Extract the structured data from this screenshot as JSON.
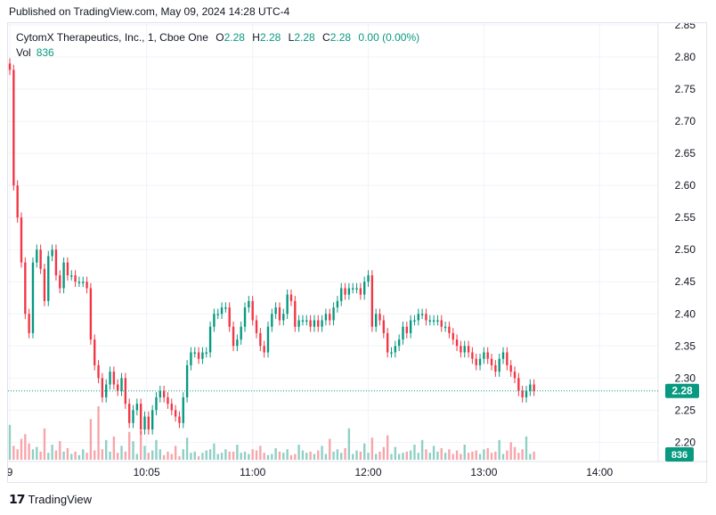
{
  "header": {
    "published": "Published on TradingView.com, May 09, 2024 14:28 UTC-4"
  },
  "legend": {
    "symbol": "CytomX Therapeutics, Inc., 1, Cboe One",
    "open_label": "O",
    "open": "2.28",
    "high_label": "H",
    "high": "2.28",
    "low_label": "L",
    "low": "2.28",
    "close_label": "C",
    "close": "2.28",
    "change": "0.00 (0.00%)",
    "vol_label": "Vol",
    "vol": "836"
  },
  "footer": {
    "brand": "TradingView"
  },
  "colors": {
    "up": "#089981",
    "down": "#f23645",
    "grid": "#f0f3fa",
    "vol_up": "#8fcfc5",
    "vol_down": "#f7a5ab"
  },
  "chart_data": {
    "type": "candlestick",
    "title": "CytomX Therapeutics, Inc., 1, Cboe One",
    "ylim": [
      2.17,
      2.85
    ],
    "y_ticks": [
      "2.85",
      "2.80",
      "2.75",
      "2.70",
      "2.65",
      "2.60",
      "2.55",
      "2.50",
      "2.45",
      "2.40",
      "2.35",
      "2.30",
      "2.25",
      "2.20"
    ],
    "x_ticks": [
      "9",
      "10:05",
      "11:00",
      "12:00",
      "13:00",
      "14:00"
    ],
    "x_tick_minutes": [
      -66,
      5,
      60,
      120,
      180,
      240
    ],
    "x_range_minutes": [
      -66,
      263
    ],
    "last_price": "2.28",
    "last_volume": "836",
    "price_path": [
      [
        -66,
        2.78
      ],
      [
        -64,
        2.6
      ],
      [
        -62,
        2.55
      ],
      [
        -60,
        2.48
      ],
      [
        -58,
        2.4
      ],
      [
        -56,
        2.37
      ],
      [
        -54,
        2.48
      ],
      [
        -52,
        2.5
      ],
      [
        -50,
        2.47
      ],
      [
        -48,
        2.42
      ],
      [
        -46,
        2.49
      ],
      [
        -44,
        2.5
      ],
      [
        -42,
        2.46
      ],
      [
        -40,
        2.44
      ],
      [
        -38,
        2.48
      ],
      [
        -36,
        2.46
      ],
      [
        -34,
        2.46
      ],
      [
        -32,
        2.45
      ],
      [
        -30,
        2.45
      ],
      [
        -28,
        2.45
      ],
      [
        -26,
        2.44
      ],
      [
        -24,
        2.36
      ],
      [
        -22,
        2.32
      ],
      [
        -20,
        2.3
      ],
      [
        -18,
        2.27
      ],
      [
        -16,
        2.29
      ],
      [
        -14,
        2.31
      ],
      [
        -12,
        2.29
      ],
      [
        -10,
        2.28
      ],
      [
        -8,
        2.3
      ],
      [
        -6,
        2.26
      ],
      [
        -4,
        2.23
      ],
      [
        -2,
        2.25
      ],
      [
        0,
        2.26
      ],
      [
        2,
        2.22
      ],
      [
        4,
        2.24
      ],
      [
        6,
        2.22
      ],
      [
        8,
        2.25
      ],
      [
        10,
        2.27
      ],
      [
        12,
        2.28
      ],
      [
        14,
        2.27
      ],
      [
        16,
        2.26
      ],
      [
        18,
        2.25
      ],
      [
        20,
        2.24
      ],
      [
        22,
        2.23
      ],
      [
        24,
        2.27
      ],
      [
        26,
        2.32
      ],
      [
        28,
        2.34
      ],
      [
        30,
        2.34
      ],
      [
        32,
        2.33
      ],
      [
        34,
        2.34
      ],
      [
        36,
        2.34
      ],
      [
        38,
        2.38
      ],
      [
        40,
        2.4
      ],
      [
        42,
        2.4
      ],
      [
        44,
        2.41
      ],
      [
        46,
        2.41
      ],
      [
        48,
        2.38
      ],
      [
        50,
        2.35
      ],
      [
        52,
        2.36
      ],
      [
        54,
        2.38
      ],
      [
        56,
        2.41
      ],
      [
        58,
        2.42
      ],
      [
        60,
        2.39
      ],
      [
        62,
        2.37
      ],
      [
        64,
        2.35
      ],
      [
        66,
        2.34
      ],
      [
        68,
        2.38
      ],
      [
        70,
        2.4
      ],
      [
        72,
        2.41
      ],
      [
        74,
        2.39
      ],
      [
        76,
        2.4
      ],
      [
        78,
        2.43
      ],
      [
        80,
        2.42
      ],
      [
        82,
        2.38
      ],
      [
        84,
        2.39
      ],
      [
        86,
        2.39
      ],
      [
        88,
        2.39
      ],
      [
        90,
        2.38
      ],
      [
        92,
        2.39
      ],
      [
        94,
        2.38
      ],
      [
        96,
        2.39
      ],
      [
        98,
        2.4
      ],
      [
        100,
        2.39
      ],
      [
        102,
        2.41
      ],
      [
        104,
        2.42
      ],
      [
        106,
        2.44
      ],
      [
        108,
        2.43
      ],
      [
        110,
        2.44
      ],
      [
        112,
        2.44
      ],
      [
        114,
        2.44
      ],
      [
        116,
        2.43
      ],
      [
        118,
        2.45
      ],
      [
        120,
        2.46
      ],
      [
        122,
        2.38
      ],
      [
        124,
        2.4
      ],
      [
        126,
        2.39
      ],
      [
        128,
        2.37
      ],
      [
        130,
        2.34
      ],
      [
        132,
        2.34
      ],
      [
        134,
        2.35
      ],
      [
        136,
        2.36
      ],
      [
        138,
        2.38
      ],
      [
        140,
        2.37
      ],
      [
        142,
        2.39
      ],
      [
        144,
        2.39
      ],
      [
        146,
        2.4
      ],
      [
        148,
        2.4
      ],
      [
        150,
        2.39
      ],
      [
        152,
        2.39
      ],
      [
        154,
        2.39
      ],
      [
        156,
        2.39
      ],
      [
        158,
        2.38
      ],
      [
        160,
        2.38
      ],
      [
        162,
        2.37
      ],
      [
        164,
        2.36
      ],
      [
        166,
        2.35
      ],
      [
        168,
        2.34
      ],
      [
        170,
        2.35
      ],
      [
        172,
        2.34
      ],
      [
        174,
        2.33
      ],
      [
        176,
        2.32
      ],
      [
        178,
        2.33
      ],
      [
        180,
        2.34
      ],
      [
        182,
        2.33
      ],
      [
        184,
        2.32
      ],
      [
        186,
        2.31
      ],
      [
        188,
        2.33
      ],
      [
        190,
        2.34
      ],
      [
        192,
        2.32
      ],
      [
        194,
        2.31
      ],
      [
        196,
        2.3
      ],
      [
        198,
        2.28
      ],
      [
        200,
        2.27
      ],
      [
        202,
        2.28
      ],
      [
        204,
        2.29
      ],
      [
        206,
        2.28
      ]
    ],
    "volume": [
      3000,
      1200,
      900,
      1800,
      2200,
      1400,
      900,
      1100,
      700,
      2700,
      600,
      1300,
      800,
      1600,
      700,
      1000,
      500,
      700,
      400,
      900,
      600,
      3500,
      800,
      4600,
      900,
      1700,
      700,
      2000,
      600,
      1200,
      700,
      2400,
      1600,
      500,
      2500,
      1200,
      600,
      800,
      1700,
      900,
      400,
      700,
      500,
      1200,
      300,
      900,
      1900,
      600,
      700,
      300,
      600,
      800,
      900,
      1400,
      500,
      600,
      900,
      700,
      700,
      1300,
      600,
      700,
      500,
      900,
      800,
      1200,
      600,
      400,
      500,
      1000,
      700,
      600,
      900,
      400,
      500,
      1300,
      800,
      600,
      700,
      500,
      800,
      1200,
      500,
      1800,
      700,
      900,
      600,
      1000,
      2700,
      500,
      800,
      700,
      1400,
      600,
      1900,
      500,
      700,
      1100,
      2100,
      500,
      1100,
      500,
      600,
      700,
      800,
      1300,
      600,
      1700,
      900,
      600,
      1200,
      700,
      1000,
      600,
      900,
      500,
      800,
      500,
      1300,
      600,
      700,
      800,
      500,
      900,
      1000,
      600,
      700,
      1700,
      500,
      800,
      1500,
      1100,
      600,
      900,
      2000,
      500,
      700,
      1000,
      1400,
      900,
      1200,
      836
    ]
  }
}
